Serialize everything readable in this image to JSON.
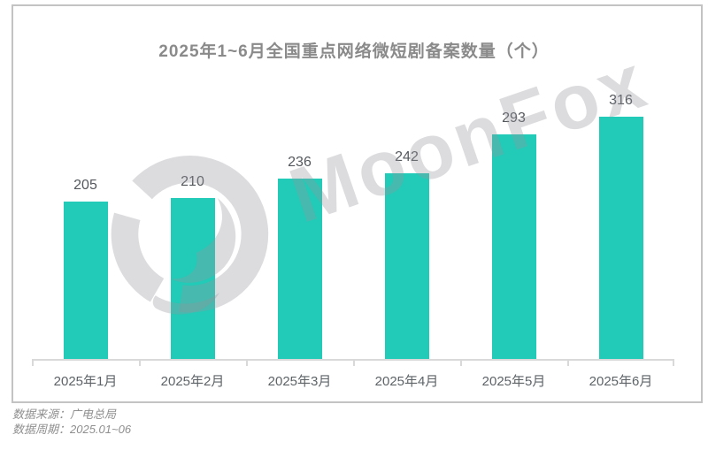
{
  "chart": {
    "title": "2025年1~6月全国重点网络微短剧备案数量（个）",
    "watermark_text": "MoonFox",
    "footer": {
      "source_line": "数据来源：广电总局",
      "period_line": "数据周期：2025.01~06"
    },
    "colors": {
      "bar": "#21cbb7",
      "title": "#8a8a8a",
      "axis": "#d9d9d9",
      "value_label": "#54585c",
      "x_label": "#5d6367",
      "frame_border": "#c3c3c3",
      "watermark": "rgba(150,150,157,0.33)",
      "footer_text": "#8f8f8f"
    }
  },
  "chart_data": {
    "type": "bar",
    "title": "2025年1~6月全国重点网络微短剧备案数量（个）",
    "categories": [
      "2025年1月",
      "2025年2月",
      "2025年3月",
      "2025年4月",
      "2025年5月",
      "2025年6月"
    ],
    "values": [
      205,
      210,
      236,
      242,
      293,
      316
    ],
    "xlabel": "",
    "ylabel": "",
    "ylim": [
      0,
      350
    ],
    "grid": false,
    "legend": "none",
    "data_labels": true,
    "bar_color": "#21cbb7"
  }
}
